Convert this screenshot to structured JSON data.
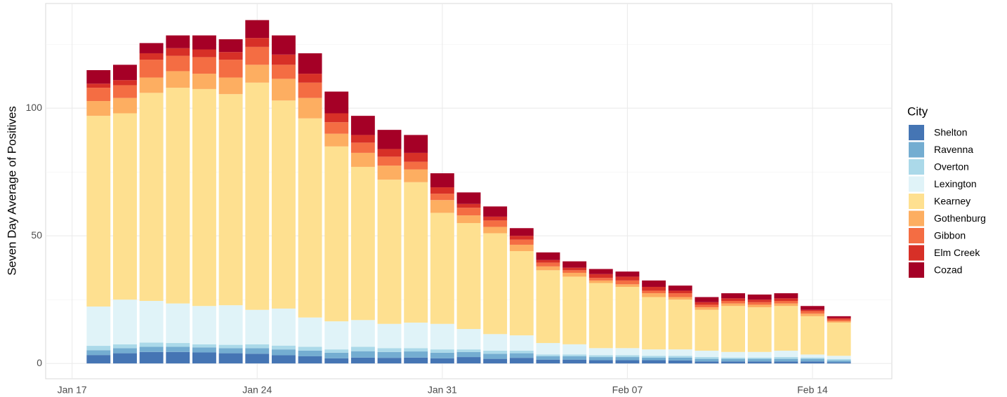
{
  "chart_data": {
    "type": "stacked_bar",
    "y_label": "Seven Day Average of Positives",
    "legend_title": "City",
    "legend_position": "right",
    "grid": true,
    "x": [
      "Jan 18",
      "Jan 19",
      "Jan 20",
      "Jan 21",
      "Jan 22",
      "Jan 23",
      "Jan 24",
      "Jan 25",
      "Jan 26",
      "Jan 27",
      "Jan 28",
      "Jan 29",
      "Jan 30",
      "Jan 31",
      "Feb 01",
      "Feb 02",
      "Feb 03",
      "Feb 04",
      "Feb 05",
      "Feb 06",
      "Feb 07",
      "Feb 08",
      "Feb 09",
      "Feb 10",
      "Feb 11",
      "Feb 12",
      "Feb 13",
      "Feb 14",
      "Feb 15"
    ],
    "xlim": [
      "Jan 16",
      "Feb 17"
    ],
    "xticks": [
      "Jan 17",
      "Jan 24",
      "Jan 31",
      "Feb 07",
      "Feb 14"
    ],
    "ylim": [
      -6,
      141
    ],
    "yticks": [
      0,
      50,
      100
    ],
    "y_minor_ticks": [
      25,
      75,
      125
    ],
    "series": [
      {
        "name": "Shelton",
        "color": "#4575b4",
        "values": [
          3.3,
          4,
          4.5,
          4.5,
          4.3,
          4,
          3.8,
          3.2,
          2.8,
          2,
          2.3,
          2.2,
          2.3,
          2,
          2.5,
          1.8,
          2.2,
          1.5,
          1.5,
          1.3,
          1.3,
          1.3,
          1.2,
          0.8,
          0.8,
          0.8,
          0.8,
          0.8,
          0.5
        ]
      },
      {
        "name": "Ravenna",
        "color": "#74add1",
        "values": [
          1.9,
          2,
          2,
          2,
          2,
          2,
          2.2,
          2.3,
          2.2,
          2.2,
          2.5,
          2.3,
          2.4,
          2.2,
          2,
          2,
          1.8,
          1.3,
          1.3,
          1.2,
          1.2,
          1,
          1.1,
          1,
          1,
          1,
          1,
          1,
          0.7
        ]
      },
      {
        "name": "Overton",
        "color": "#abd9e9",
        "values": [
          1.7,
          1.5,
          1.7,
          1.5,
          1.2,
          1.3,
          1.5,
          1.5,
          1.5,
          1.3,
          1.7,
          1.5,
          1.3,
          1.3,
          1,
          1.2,
          1,
          0.7,
          0.7,
          0.7,
          0.7,
          0.7,
          0.7,
          0.7,
          0.5,
          0.5,
          0.7,
          0.5,
          0.5
        ]
      },
      {
        "name": "Lexington",
        "color": "#e0f3f8",
        "values": [
          15.4,
          17.5,
          16.3,
          15.5,
          15,
          15.5,
          13.5,
          14.5,
          11.5,
          11,
          10.5,
          9.5,
          10,
          10,
          8,
          6.5,
          6,
          4.5,
          4,
          2.8,
          2.8,
          2.5,
          2.5,
          2.5,
          2.2,
          2.2,
          2.5,
          1.2,
          1.3
        ]
      },
      {
        "name": "Kearney",
        "color": "#fee090",
        "values": [
          74.7,
          73,
          81.5,
          84.5,
          85,
          82.7,
          89,
          81.5,
          78,
          68.5,
          60,
          56.5,
          55,
          43.5,
          41.5,
          39.5,
          33,
          28.5,
          26.5,
          25.5,
          24,
          20.5,
          19.5,
          16,
          18,
          17.5,
          17.5,
          15,
          13
        ]
      },
      {
        "name": "Gothenburg",
        "color": "#fdae61",
        "values": [
          5.8,
          6,
          6,
          6.5,
          6,
          6.5,
          7,
          8.5,
          8,
          5,
          5.5,
          5.5,
          5,
          5,
          3,
          2.5,
          2.5,
          1.5,
          1.5,
          1,
          1,
          1.5,
          1,
          1,
          1,
          1,
          1,
          1,
          0.5
        ]
      },
      {
        "name": "Gibbon",
        "color": "#f46d43",
        "values": [
          5.2,
          5,
          7,
          6,
          6.5,
          7,
          7,
          5.5,
          6,
          4.5,
          4,
          3.5,
          3,
          2.5,
          3,
          2.5,
          2,
          1.5,
          1,
          1,
          1.5,
          1,
          1.5,
          1,
          1,
          1,
          1,
          1,
          0.7
        ]
      },
      {
        "name": "Elm Creek",
        "color": "#d73027",
        "values": [
          1.6,
          2,
          2.5,
          3,
          3,
          3,
          3.5,
          4,
          3.5,
          3.5,
          3,
          3,
          3.5,
          2.5,
          1.5,
          1.5,
          1.5,
          1,
          1,
          1.5,
          1.5,
          1.5,
          1,
          1,
          1,
          1,
          1,
          0.5,
          0.6
        ]
      },
      {
        "name": "Cozad",
        "color": "#a50026",
        "values": [
          5.3,
          6,
          4,
          5,
          5.5,
          5,
          7,
          7.5,
          8,
          8.5,
          7.5,
          7.5,
          7,
          5.5,
          4.5,
          4,
          3,
          3,
          2.5,
          2,
          2,
          2.5,
          2,
          2,
          2,
          2,
          2,
          1.5,
          0.7
        ]
      }
    ]
  }
}
